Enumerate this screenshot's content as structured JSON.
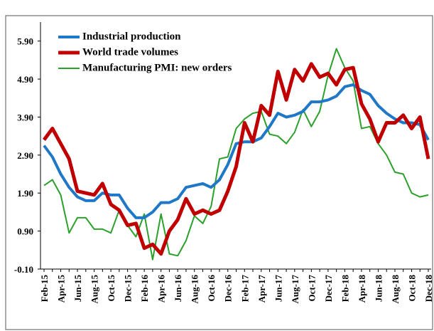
{
  "chart_data": {
    "type": "line",
    "categories": [
      "Feb-15",
      null,
      "Apr-15",
      null,
      "Jun-15",
      null,
      "Aug-15",
      null,
      "Oct-15",
      null,
      "Dec-15",
      null,
      "Feb-16",
      null,
      "Apr-16",
      null,
      "Jun-16",
      null,
      "Aug-16",
      null,
      "Oct-16",
      null,
      "Dec-16",
      null,
      "Feb-17",
      null,
      "Apr-17",
      null,
      "Jun-17",
      null,
      "Aug-17",
      null,
      "Oct-17",
      null,
      "Dec-17",
      null,
      "Feb-18",
      null,
      "Apr-18",
      null,
      "Jun-18",
      null,
      "Aug-18",
      null,
      "Oct-18",
      null,
      "Dec-18"
    ],
    "series": [
      {
        "name": "Industrial production",
        "color": "#1f77c8",
        "values": [
          3.15,
          2.85,
          2.4,
          2.05,
          1.8,
          1.7,
          1.7,
          1.9,
          1.85,
          1.85,
          1.5,
          1.25,
          1.25,
          1.4,
          1.65,
          1.65,
          1.75,
          2.05,
          2.1,
          2.15,
          2.05,
          2.25,
          2.65,
          3.2,
          3.25,
          3.25,
          3.35,
          3.65,
          4.0,
          3.9,
          3.95,
          4.05,
          4.3,
          4.3,
          4.35,
          4.45,
          4.7,
          4.75,
          4.6,
          4.5,
          4.2,
          4.0,
          3.85,
          3.75,
          3.75,
          3.7,
          3.3
        ]
      },
      {
        "name": "World trade volumes",
        "color": "#c00000",
        "values": [
          3.3,
          3.6,
          3.2,
          2.8,
          1.95,
          1.9,
          1.85,
          2.15,
          1.6,
          1.45,
          1.05,
          1.1,
          0.45,
          0.55,
          0.3,
          0.9,
          1.2,
          1.75,
          1.35,
          1.45,
          1.35,
          1.45,
          1.95,
          2.6,
          3.75,
          3.25,
          4.2,
          3.95,
          5.1,
          4.35,
          5.15,
          4.85,
          5.3,
          4.95,
          5.05,
          4.75,
          5.15,
          5.2,
          4.25,
          3.85,
          3.25,
          3.75,
          3.75,
          3.95,
          3.6,
          3.9,
          2.8
        ]
      },
      {
        "name": "Manufacturing PMI: new orders",
        "color": "#2ca02c",
        "values": [
          2.1,
          2.25,
          1.85,
          0.85,
          1.25,
          1.25,
          0.95,
          0.95,
          0.85,
          1.45,
          1.05,
          0.75,
          1.35,
          0.15,
          1.35,
          0.3,
          0.25,
          0.65,
          1.3,
          1.1,
          1.55,
          2.8,
          2.85,
          3.6,
          3.85,
          4.0,
          4.05,
          3.45,
          3.4,
          3.2,
          3.5,
          4.1,
          3.65,
          4.05,
          5.0,
          5.7,
          5.2,
          4.85,
          3.6,
          3.65,
          3.2,
          2.9,
          2.45,
          2.4,
          1.9,
          1.8,
          1.85
        ]
      }
    ],
    "ylim": [
      -0.1,
      6.4
    ],
    "yticks": [
      {
        "value": -0.1,
        "label": "-0.10"
      },
      {
        "value": 0.9,
        "label": "0.90"
      },
      {
        "value": 1.9,
        "label": "1.90"
      },
      {
        "value": 2.9,
        "label": "2.90"
      },
      {
        "value": 3.9,
        "label": "3.90"
      },
      {
        "value": 4.9,
        "label": "4.90"
      },
      {
        "value": 5.9,
        "label": "5.90"
      }
    ],
    "grid": false
  }
}
